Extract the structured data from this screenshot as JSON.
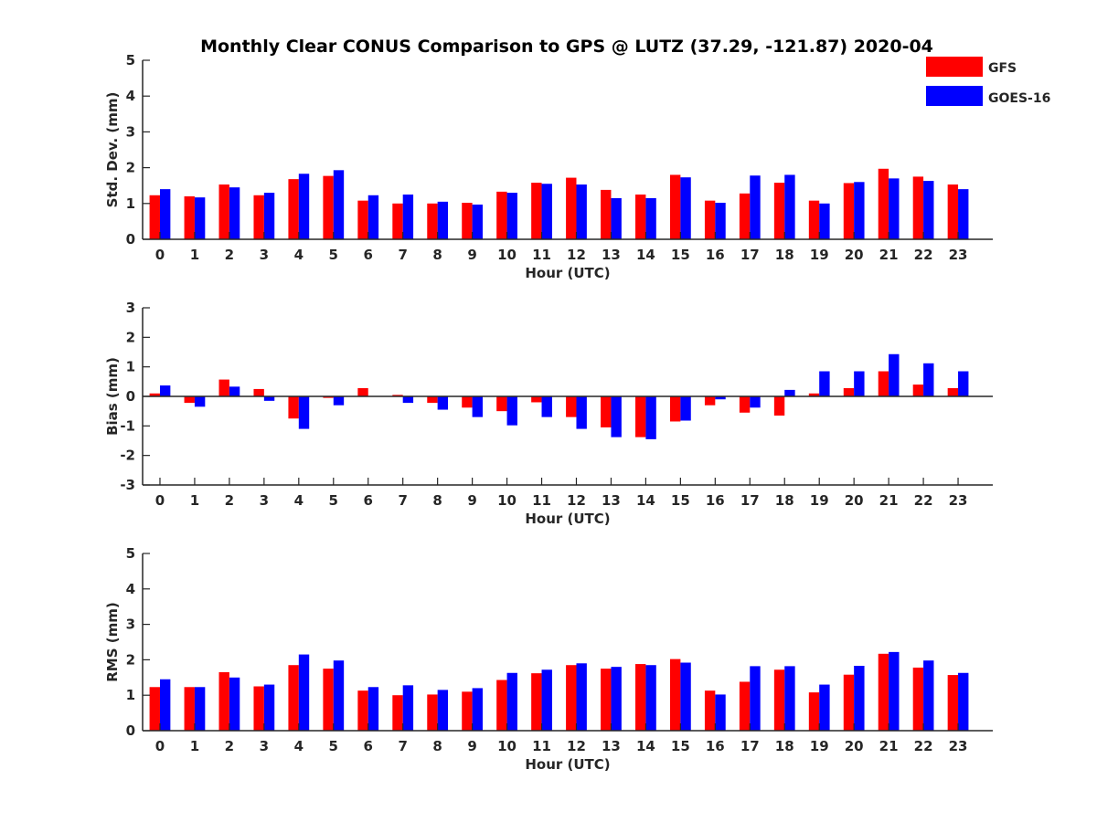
{
  "title": "Monthly Clear CONUS Comparison to GPS @ LUTZ (37.29, -121.87) 2020-04",
  "colors": {
    "gfs": "#ff0000",
    "goes": "#0000ff",
    "axis": "#262626"
  },
  "legend": [
    {
      "label": "GFS",
      "color": "#ff0000"
    },
    {
      "label": "GOES-16",
      "color": "#0000ff"
    }
  ],
  "chart_data": [
    {
      "type": "bar",
      "id": "std",
      "ylabel": "Std. Dev. (mm)",
      "xlabel": "Hour (UTC)",
      "ylim": [
        0,
        5
      ],
      "yticks": [
        0,
        1,
        2,
        3,
        4,
        5
      ],
      "categories": [
        "0",
        "1",
        "2",
        "3",
        "4",
        "5",
        "6",
        "7",
        "8",
        "9",
        "10",
        "11",
        "12",
        "13",
        "14",
        "15",
        "16",
        "17",
        "18",
        "19",
        "20",
        "21",
        "22",
        "23"
      ],
      "series": [
        {
          "name": "GFS",
          "values": [
            1.23,
            1.2,
            1.53,
            1.23,
            1.68,
            1.77,
            1.08,
            1.0,
            1.0,
            1.02,
            1.33,
            1.58,
            1.72,
            1.38,
            1.25,
            1.8,
            1.08,
            1.28,
            1.58,
            1.08,
            1.57,
            1.97,
            1.75,
            1.53
          ]
        },
        {
          "name": "GOES-16",
          "values": [
            1.4,
            1.17,
            1.45,
            1.3,
            1.83,
            1.93,
            1.23,
            1.25,
            1.05,
            0.97,
            1.3,
            1.55,
            1.53,
            1.15,
            1.15,
            1.73,
            1.02,
            1.78,
            1.8,
            1.0,
            1.6,
            1.7,
            1.63,
            1.4
          ]
        }
      ]
    },
    {
      "type": "bar",
      "id": "bias",
      "ylabel": "Bias (mm)",
      "xlabel": "Hour (UTC)",
      "ylim": [
        -3,
        3
      ],
      "yticks": [
        -3,
        -2,
        -1,
        0,
        1,
        2,
        3
      ],
      "categories": [
        "0",
        "1",
        "2",
        "3",
        "4",
        "5",
        "6",
        "7",
        "8",
        "9",
        "10",
        "11",
        "12",
        "13",
        "14",
        "15",
        "16",
        "17",
        "18",
        "19",
        "20",
        "21",
        "22",
        "23"
      ],
      "series": [
        {
          "name": "GFS",
          "values": [
            0.1,
            -0.22,
            0.57,
            0.25,
            -0.75,
            -0.05,
            0.28,
            0.05,
            -0.22,
            -0.38,
            -0.5,
            -0.2,
            -0.7,
            -1.05,
            -1.38,
            -0.85,
            -0.3,
            -0.55,
            -0.65,
            0.1,
            0.28,
            0.85,
            0.4,
            0.28
          ]
        },
        {
          "name": "GOES-16",
          "values": [
            0.37,
            -0.35,
            0.33,
            -0.15,
            -1.1,
            -0.3,
            0.0,
            -0.22,
            -0.45,
            -0.7,
            -0.98,
            -0.7,
            -1.1,
            -1.38,
            -1.45,
            -0.82,
            -0.1,
            -0.38,
            0.22,
            0.85,
            0.85,
            1.43,
            1.12,
            0.85
          ]
        }
      ]
    },
    {
      "type": "bar",
      "id": "rms",
      "ylabel": "RMS (mm)",
      "xlabel": "Hour (UTC)",
      "ylim": [
        0,
        5
      ],
      "yticks": [
        0,
        1,
        2,
        3,
        4,
        5
      ],
      "categories": [
        "0",
        "1",
        "2",
        "3",
        "4",
        "5",
        "6",
        "7",
        "8",
        "9",
        "10",
        "11",
        "12",
        "13",
        "14",
        "15",
        "16",
        "17",
        "18",
        "19",
        "20",
        "21",
        "22",
        "23"
      ],
      "series": [
        {
          "name": "GFS",
          "values": [
            1.23,
            1.23,
            1.65,
            1.25,
            1.85,
            1.75,
            1.13,
            1.0,
            1.02,
            1.1,
            1.43,
            1.62,
            1.85,
            1.75,
            1.88,
            2.02,
            1.13,
            1.38,
            1.72,
            1.08,
            1.58,
            2.17,
            1.78,
            1.57
          ]
        },
        {
          "name": "GOES-16",
          "values": [
            1.45,
            1.23,
            1.5,
            1.3,
            2.15,
            1.98,
            1.23,
            1.28,
            1.15,
            1.2,
            1.63,
            1.72,
            1.9,
            1.8,
            1.85,
            1.92,
            1.02,
            1.82,
            1.82,
            1.3,
            1.83,
            2.22,
            1.98,
            1.63
          ]
        }
      ]
    }
  ]
}
